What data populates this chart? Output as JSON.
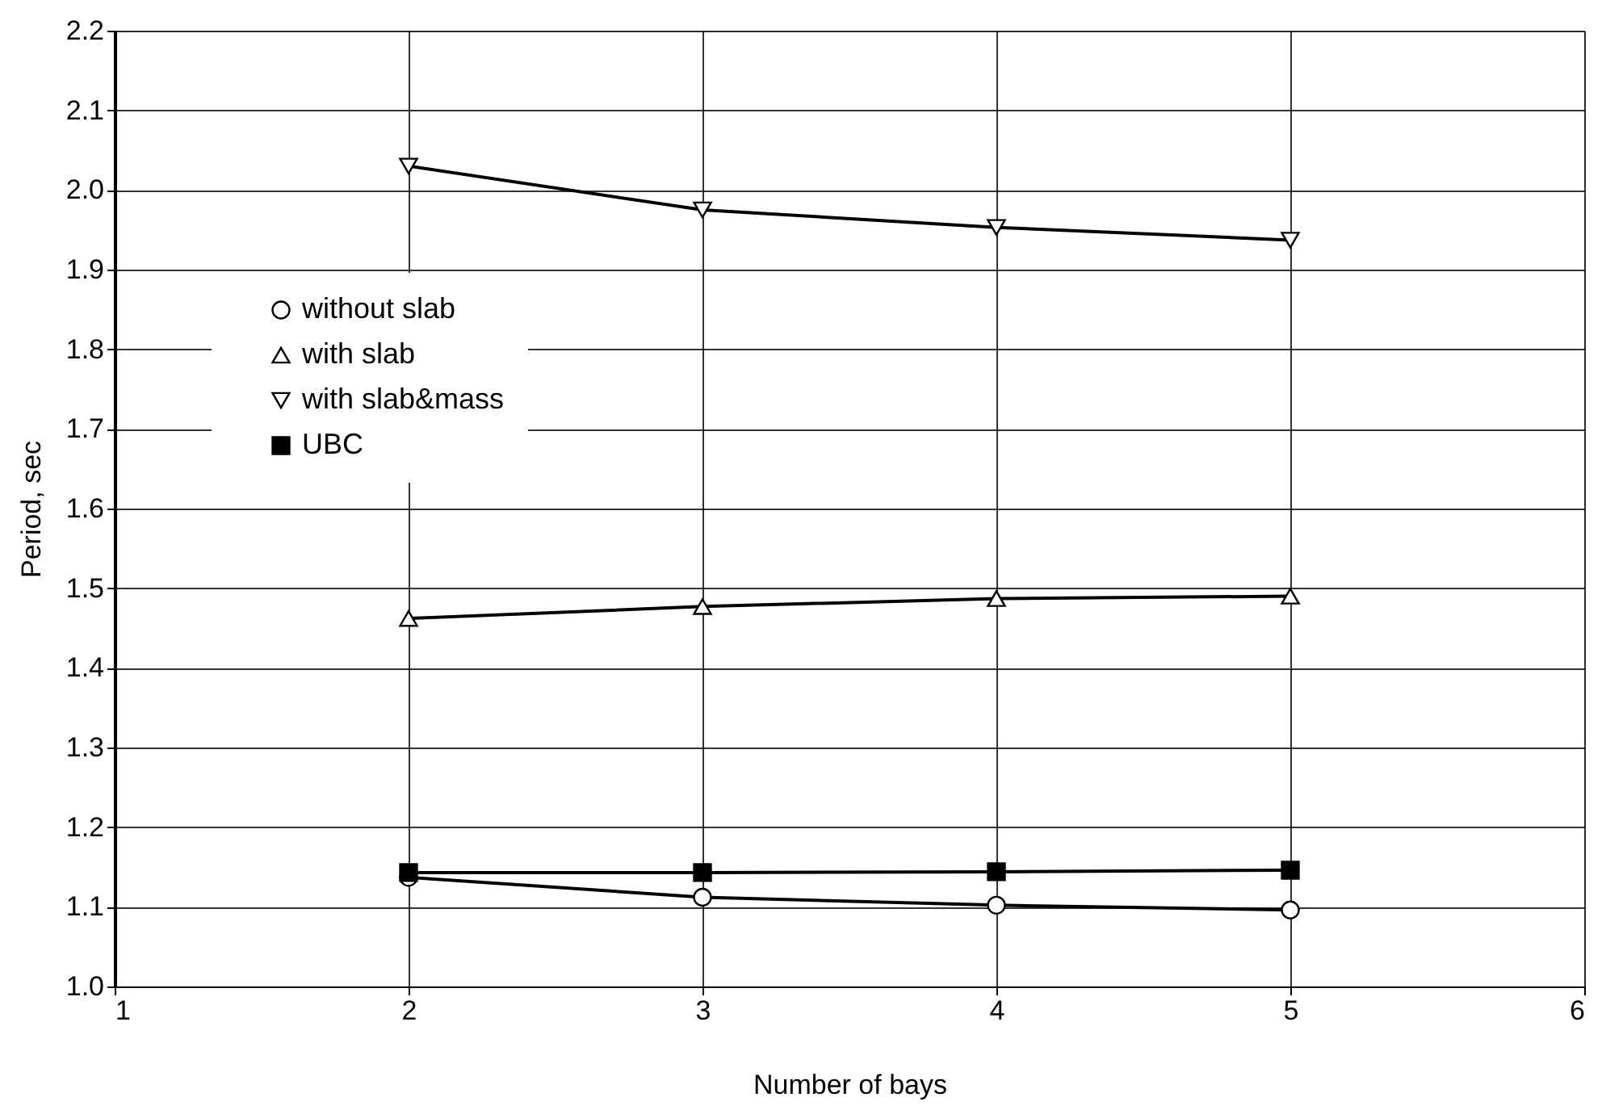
{
  "chart_data": {
    "type": "line",
    "xlabel": "Number of bays",
    "ylabel": "Period, sec",
    "x": [
      2,
      3,
      4,
      5
    ],
    "series": [
      {
        "name": "without slab",
        "color": "#000000",
        "marker": "circle",
        "values": [
          1.137,
          1.112,
          1.102,
          1.096
        ]
      },
      {
        "name": "with slab",
        "color": "#000000",
        "marker": "triangle",
        "values": [
          1.462,
          1.477,
          1.487,
          1.49
        ]
      },
      {
        "name": "with slab&mass",
        "color": "#000000",
        "marker": "triangle-down",
        "values": [
          2.03,
          1.975,
          1.953,
          1.937
        ]
      },
      {
        "name": "UBC",
        "color": "#000000",
        "marker": "square",
        "values": [
          1.143,
          1.143,
          1.144,
          1.146
        ]
      }
    ],
    "xlim": [
      1,
      6
    ],
    "xticks": [
      1,
      2,
      3,
      4,
      5,
      6
    ],
    "ylim": [
      1.0,
      2.2
    ],
    "yticks": [
      {
        "value": 1.0,
        "label": "1.0"
      },
      1.1,
      1.2,
      1.3,
      1.4,
      1.5,
      1.6,
      1.7,
      1.8,
      1.9,
      {
        "value": 2.0,
        "label": "2.0"
      },
      2.1,
      2.2
    ],
    "grid": true,
    "legend": "top left",
    "line_style": "solid"
  }
}
